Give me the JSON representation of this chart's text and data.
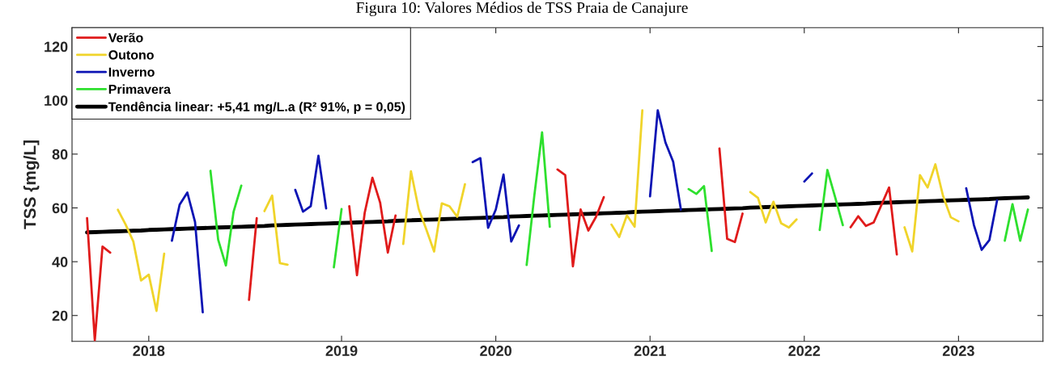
{
  "chart_data": {
    "type": "line",
    "title": "Figura 10: Valores Médios de TSS Praia de Canajure",
    "ylabel": "TSS {mg/L]",
    "ylim": [
      10.4,
      127
    ],
    "yticks": [
      20,
      40,
      60,
      80,
      100,
      120
    ],
    "grid": false,
    "legend": "top left",
    "marker": "none",
    "line_style": "solid",
    "categories": [
      null,
      null,
      null,
      null,
      null,
      null,
      null,
      null,
      "2018",
      null,
      null,
      null,
      null,
      null,
      null,
      null,
      null,
      null,
      null,
      null,
      null,
      null,
      null,
      null,
      null,
      null,
      null,
      null,
      null,
      null,
      null,
      null,
      null,
      "2019",
      null,
      null,
      null,
      null,
      null,
      null,
      null,
      null,
      null,
      null,
      null,
      null,
      null,
      null,
      null,
      null,
      null,
      null,
      null,
      "2020",
      null,
      null,
      null,
      null,
      null,
      null,
      null,
      null,
      null,
      null,
      null,
      null,
      null,
      null,
      null,
      null,
      null,
      null,
      null,
      "2021",
      null,
      null,
      null,
      null,
      null,
      null,
      null,
      null,
      null,
      null,
      null,
      null,
      null,
      null,
      null,
      null,
      null,
      null,
      null,
      "2022",
      null,
      null,
      null,
      null,
      null,
      null,
      null,
      null,
      null,
      null,
      null,
      null,
      null,
      null,
      null,
      null,
      null,
      null,
      null,
      "2023",
      null,
      null,
      null,
      null,
      null,
      null,
      null,
      null,
      null
    ],
    "series": [
      {
        "name": "Verão",
        "color": "#e01b1b",
        "values": [
          56.2,
          10.8,
          45.6,
          43.4,
          null,
          null,
          null,
          null,
          null,
          null,
          null,
          null,
          null,
          null,
          null,
          null,
          null,
          null,
          null,
          null,
          null,
          25.8,
          56.2,
          null,
          null,
          null,
          null,
          null,
          null,
          null,
          null,
          null,
          null,
          null,
          60.6,
          35.0,
          58.2,
          71.2,
          62.0,
          43.4,
          57.2,
          null,
          null,
          null,
          null,
          null,
          null,
          null,
          null,
          null,
          null,
          null,
          null,
          null,
          null,
          null,
          null,
          null,
          null,
          null,
          null,
          74.3,
          72.2,
          38.3,
          59.4,
          51.6,
          56.7,
          64.0,
          null,
          null,
          null,
          null,
          null,
          null,
          null,
          null,
          null,
          null,
          null,
          null,
          null,
          null,
          82.1,
          48.5,
          47.3,
          57.9,
          null,
          null,
          null,
          null,
          null,
          null,
          null,
          null,
          null,
          null,
          null,
          null,
          null,
          52.8,
          56.9,
          53.3,
          54.6,
          61.1,
          67.6,
          42.7,
          null,
          null,
          null,
          null,
          null,
          null,
          null,
          null,
          null,
          null,
          null,
          null,
          null,
          null,
          null,
          null,
          null
        ]
      },
      {
        "name": "Outono",
        "color": "#f0d42a",
        "values": [
          null,
          null,
          null,
          null,
          59.3,
          53.8,
          47.5,
          33.0,
          35.2,
          21.7,
          43.0,
          null,
          null,
          null,
          null,
          null,
          null,
          null,
          null,
          null,
          null,
          null,
          null,
          58.8,
          64.6,
          39.5,
          38.9,
          null,
          null,
          null,
          null,
          null,
          null,
          null,
          null,
          null,
          null,
          null,
          null,
          null,
          null,
          46.6,
          73.6,
          59.6,
          51.9,
          43.8,
          61.7,
          60.6,
          56.7,
          68.8,
          null,
          null,
          null,
          null,
          null,
          null,
          null,
          null,
          null,
          null,
          null,
          null,
          null,
          null,
          null,
          null,
          null,
          null,
          53.8,
          49.2,
          57.2,
          53.0,
          96.3,
          null,
          null,
          null,
          null,
          null,
          null,
          null,
          null,
          null,
          null,
          null,
          null,
          null,
          65.9,
          63.7,
          54.6,
          62.3,
          54.3,
          52.7,
          55.7,
          null,
          null,
          null,
          null,
          null,
          null,
          null,
          null,
          null,
          null,
          null,
          null,
          null,
          52.8,
          43.8,
          72.2,
          67.6,
          76.2,
          64.4,
          56.5,
          55.0,
          null,
          null,
          null,
          null,
          null,
          null,
          null,
          null,
          null
        ]
      },
      {
        "name": "Inverno",
        "color": "#0c14b4",
        "values": [
          null,
          null,
          null,
          null,
          null,
          null,
          null,
          null,
          null,
          null,
          null,
          47.8,
          61.2,
          65.7,
          54.8,
          21.2,
          null,
          null,
          null,
          null,
          null,
          null,
          null,
          null,
          null,
          null,
          null,
          66.7,
          58.6,
          60.6,
          79.4,
          59.8,
          null,
          null,
          null,
          null,
          null,
          null,
          null,
          null,
          null,
          null,
          null,
          null,
          null,
          null,
          null,
          null,
          null,
          null,
          77.0,
          78.5,
          52.6,
          59.4,
          72.4,
          47.5,
          53.5,
          null,
          null,
          null,
          null,
          null,
          null,
          null,
          null,
          null,
          null,
          null,
          null,
          null,
          null,
          null,
          null,
          64.3,
          96.3,
          84.3,
          77.2,
          59.4,
          null,
          null,
          null,
          null,
          null,
          null,
          null,
          null,
          null,
          null,
          null,
          null,
          null,
          null,
          null,
          69.8,
          72.8,
          null,
          null,
          null,
          null,
          null,
          null,
          null,
          null,
          null,
          null,
          null,
          null,
          null,
          null,
          null,
          null,
          null,
          null,
          null,
          67.3,
          53.6,
          44.4,
          48.0,
          62.8,
          null,
          null,
          null,
          null
        ]
      },
      {
        "name": "Primavera",
        "color": "#2ee02e",
        "values": [
          null,
          null,
          null,
          null,
          null,
          null,
          null,
          null,
          null,
          null,
          null,
          null,
          null,
          null,
          null,
          null,
          73.8,
          48.2,
          38.6,
          58.6,
          68.3,
          null,
          null,
          null,
          null,
          null,
          null,
          null,
          null,
          null,
          null,
          null,
          37.9,
          59.6,
          null,
          null,
          null,
          null,
          null,
          null,
          null,
          null,
          null,
          null,
          null,
          null,
          null,
          null,
          null,
          null,
          null,
          null,
          null,
          null,
          null,
          null,
          null,
          38.8,
          64.7,
          88.1,
          53.0,
          null,
          null,
          null,
          null,
          null,
          null,
          null,
          null,
          null,
          null,
          null,
          null,
          null,
          null,
          null,
          null,
          null,
          67.0,
          65.2,
          68.1,
          44.0,
          null,
          null,
          null,
          null,
          null,
          null,
          null,
          null,
          null,
          null,
          null,
          null,
          null,
          51.8,
          74.1,
          64.0,
          53.6,
          null,
          null,
          null,
          null,
          null,
          null,
          null,
          null,
          null,
          null,
          null,
          null,
          null,
          null,
          null,
          null,
          null,
          null,
          null,
          null,
          47.8,
          61.4,
          47.8,
          59.4
        ]
      },
      {
        "name": "Tendência linear: +5,41 mg/L.a (R² 91%, p = 0,05)",
        "color": "#000000",
        "values": [
          50.9,
          51.0,
          51.1,
          51.2,
          51.3,
          51.4,
          51.5,
          51.6,
          51.8,
          51.9,
          52.0,
          52.1,
          52.2,
          52.3,
          52.4,
          52.5,
          52.6,
          52.7,
          52.8,
          52.9,
          53.0,
          53.1,
          53.2,
          53.3,
          53.5,
          53.6,
          53.7,
          53.8,
          53.9,
          54.0,
          54.1,
          54.2,
          54.3,
          54.4,
          54.5,
          54.6,
          54.7,
          54.8,
          54.9,
          55.0,
          55.2,
          55.3,
          55.4,
          55.5,
          55.6,
          55.7,
          55.8,
          55.9,
          56.0,
          56.1,
          56.2,
          56.3,
          56.4,
          56.5,
          56.6,
          56.8,
          56.9,
          57.0,
          57.1,
          57.2,
          57.3,
          57.4,
          57.5,
          57.6,
          57.7,
          57.8,
          57.9,
          58.0,
          58.1,
          58.2,
          58.3,
          58.5,
          58.6,
          58.7,
          58.8,
          58.9,
          59.0,
          59.1,
          59.2,
          59.3,
          59.4,
          59.5,
          59.6,
          59.7,
          59.8,
          59.9,
          60.1,
          60.2,
          60.3,
          60.4,
          60.5,
          60.6,
          60.7,
          60.8,
          60.9,
          61.0,
          61.1,
          61.2,
          61.3,
          61.4,
          61.5,
          61.6,
          61.8,
          61.9,
          62.0,
          62.1,
          62.2,
          62.3,
          62.4,
          62.5,
          62.6,
          62.7,
          62.8,
          62.9,
          63.0,
          63.1,
          63.2,
          63.3,
          63.5,
          63.6,
          63.7,
          63.8,
          63.9
        ]
      }
    ]
  }
}
